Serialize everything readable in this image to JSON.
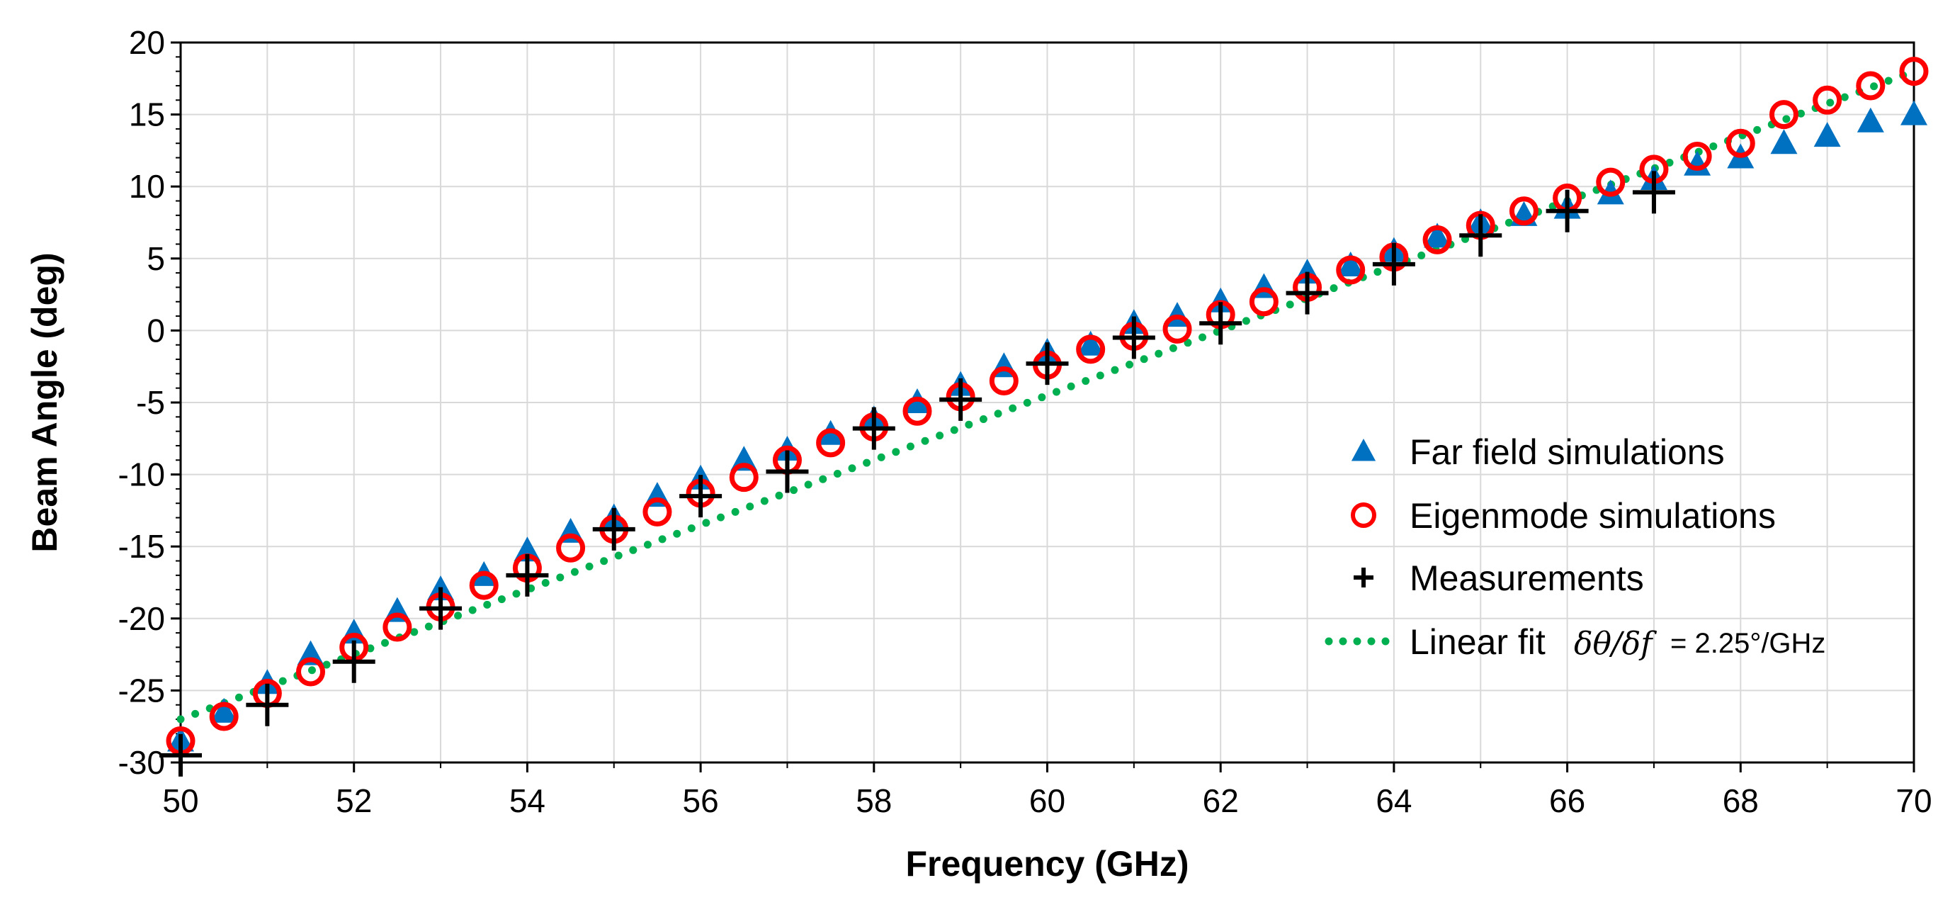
{
  "chart_data": {
    "type": "scatter",
    "title": "",
    "xlabel": "Frequency (GHz)",
    "ylabel": "Beam Angle (deg)",
    "xlim": [
      50,
      70
    ],
    "ylim": [
      -30,
      20
    ],
    "x_ticks": [
      50,
      52,
      54,
      56,
      58,
      60,
      62,
      64,
      66,
      68,
      70
    ],
    "x_tick_labels": [
      "50",
      "52",
      "54",
      "56",
      "58",
      "60",
      "62",
      "64",
      "66",
      "68",
      "70"
    ],
    "y_ticks": [
      -30,
      -25,
      -20,
      -15,
      -10,
      -5,
      0,
      5,
      10,
      15,
      20
    ],
    "y_tick_labels": [
      "-30",
      "-25",
      "-20",
      "-15",
      "-10",
      "-5",
      "0",
      "5",
      "10",
      "15",
      "20"
    ],
    "grid": true,
    "legend_position": "right",
    "series": [
      {
        "name": "Far field simulations",
        "marker": "triangle",
        "color": "#0070C0",
        "x": [
          50,
          50.5,
          51,
          51.5,
          52,
          52.5,
          53,
          53.5,
          54,
          54.5,
          55,
          55.5,
          56,
          56.5,
          57,
          57.5,
          58,
          58.5,
          59,
          59.5,
          60,
          60.5,
          61,
          61.5,
          62,
          62.5,
          63,
          63.5,
          64,
          64.5,
          65,
          65.5,
          66,
          66.5,
          67,
          67.5,
          68,
          68.5,
          69,
          69.5,
          70
        ],
        "y": [
          -28.5,
          -26.5,
          -24.5,
          -22.5,
          -21,
          -19.5,
          -18,
          -17,
          -15.3,
          -14,
          -13,
          -11.5,
          -10.3,
          -9,
          -8.3,
          -7.2,
          -6.2,
          -5,
          -3.8,
          -2.5,
          -1.5,
          -1.0,
          0.5,
          1.0,
          2.0,
          3.0,
          4.0,
          4.5,
          5.5,
          6.5,
          7.5,
          8.0,
          8.5,
          9.5,
          10.5,
          11.5,
          12.0,
          13.0,
          13.5,
          14.5,
          15.0
        ]
      },
      {
        "name": "Eigenmode simulations",
        "marker": "circle-open",
        "color": "#FF0000",
        "x": [
          50,
          50.5,
          51,
          51.5,
          52,
          52.5,
          53,
          53.5,
          54,
          54.5,
          55,
          55.5,
          56,
          56.5,
          57,
          57.5,
          58,
          58.5,
          59,
          59.5,
          60,
          60.5,
          61,
          61.5,
          62,
          62.5,
          63,
          63.5,
          64,
          64.5,
          65,
          65.5,
          66,
          66.5,
          67,
          67.5,
          68,
          68.5,
          69,
          69.5,
          70
        ],
        "y": [
          -28.5,
          -26.8,
          -25.2,
          -23.7,
          -22.0,
          -20.6,
          -19.2,
          -17.7,
          -16.5,
          -15.1,
          -13.8,
          -12.6,
          -11.3,
          -10.2,
          -9.0,
          -7.8,
          -6.7,
          -5.6,
          -4.6,
          -3.5,
          -2.4,
          -1.3,
          -0.4,
          0.1,
          1.1,
          2.0,
          3.0,
          4.2,
          5.1,
          6.3,
          7.3,
          8.3,
          9.2,
          10.3,
          11.2,
          12.1,
          13.0,
          15.0,
          16.0,
          17.0,
          18.0
        ]
      },
      {
        "name": "Measurements",
        "marker": "plus",
        "color": "#000000",
        "x": [
          50,
          51,
          52,
          53,
          54,
          55,
          56,
          57,
          58,
          59,
          60,
          61,
          62,
          63,
          64,
          65,
          66,
          67
        ],
        "y": [
          -29.5,
          -26.0,
          -23.0,
          -19.3,
          -17.0,
          -13.8,
          -11.5,
          -9.8,
          -6.8,
          -4.8,
          -2.3,
          -0.5,
          0.5,
          2.6,
          4.6,
          6.6,
          8.3,
          9.6
        ]
      },
      {
        "name": "Linear fit",
        "marker": "dotted-line",
        "color": "#00B050",
        "slope": 2.25,
        "intercept_at_62": 0,
        "x": [
          50,
          70
        ],
        "y": [
          -27.0,
          18.0
        ]
      }
    ],
    "legend": {
      "items": [
        {
          "label": "Far field simulations"
        },
        {
          "label": "Eigenmode simulations"
        },
        {
          "label": "Measurements"
        },
        {
          "label": "Linear fit",
          "equation_symbol": "δθ/δf",
          "equation_value": "= 2.25°/GHz"
        }
      ]
    }
  }
}
